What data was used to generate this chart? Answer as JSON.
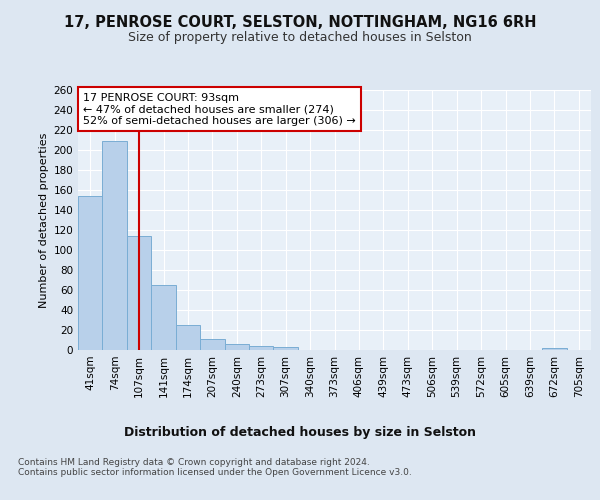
{
  "title": "17, PENROSE COURT, SELSTON, NOTTINGHAM, NG16 6RH",
  "subtitle": "Size of property relative to detached houses in Selston",
  "xlabel": "Distribution of detached houses by size in Selston",
  "ylabel": "Number of detached properties",
  "bar_labels": [
    "41sqm",
    "74sqm",
    "107sqm",
    "141sqm",
    "174sqm",
    "207sqm",
    "240sqm",
    "273sqm",
    "307sqm",
    "340sqm",
    "373sqm",
    "406sqm",
    "439sqm",
    "473sqm",
    "506sqm",
    "539sqm",
    "572sqm",
    "605sqm",
    "639sqm",
    "672sqm",
    "705sqm"
  ],
  "bar_values": [
    154,
    209,
    114,
    65,
    25,
    11,
    6,
    4,
    3,
    0,
    0,
    0,
    0,
    0,
    0,
    0,
    0,
    0,
    0,
    2,
    0
  ],
  "bar_color": "#b8d0ea",
  "bar_edge_color": "#7aadd4",
  "bg_color": "#dde7f2",
  "plot_bg_color": "#e8f0f8",
  "grid_color": "#ffffff",
  "vline_x": 2.0,
  "vline_color": "#cc0000",
  "annotation_text": "17 PENROSE COURT: 93sqm\n← 47% of detached houses are smaller (274)\n52% of semi-detached houses are larger (306) →",
  "annotation_box_color": "#ffffff",
  "annotation_box_edge": "#cc0000",
  "footer": "Contains HM Land Registry data © Crown copyright and database right 2024.\nContains public sector information licensed under the Open Government Licence v3.0.",
  "ylim": [
    0,
    260
  ],
  "yticks": [
    0,
    20,
    40,
    60,
    80,
    100,
    120,
    140,
    160,
    180,
    200,
    220,
    240,
    260
  ],
  "title_fontsize": 10.5,
  "subtitle_fontsize": 9,
  "tick_fontsize": 7.5,
  "ylabel_fontsize": 8,
  "xlabel_fontsize": 9,
  "footer_fontsize": 6.5,
  "annotation_fontsize": 8
}
